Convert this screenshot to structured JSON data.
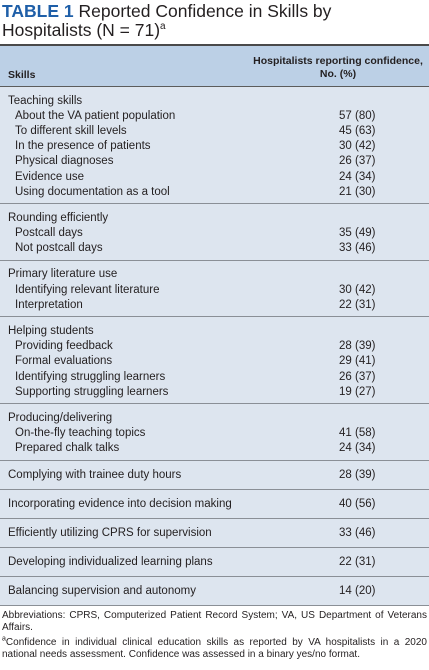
{
  "title": {
    "label": "TABLE 1",
    "text": "Reported Confidence in Skills by Hospitalists (N = 71)",
    "note_mark": "a"
  },
  "header": {
    "skills": "Skills",
    "confidence": "Hospitalists reporting confidence, No. (%)"
  },
  "groups": [
    {
      "title": "Teaching skills",
      "items": [
        {
          "label": "About the VA patient population",
          "value": "57 (80)"
        },
        {
          "label": "To different skill levels",
          "value": "45 (63)"
        },
        {
          "label": "In the presence of patients",
          "value": "30 (42)"
        },
        {
          "label": "Physical diagnoses",
          "value": "26 (37)"
        },
        {
          "label": "Evidence use",
          "value": "24 (34)"
        },
        {
          "label": "Using documentation as a tool",
          "value": "21 (30)"
        }
      ]
    },
    {
      "title": "Rounding efficiently",
      "items": [
        {
          "label": "Postcall days",
          "value": "35 (49)"
        },
        {
          "label": "Not postcall days",
          "value": "33 (46)"
        }
      ]
    },
    {
      "title": "Primary literature use",
      "items": [
        {
          "label": "Identifying relevant literature",
          "value": "30 (42)"
        },
        {
          "label": "Interpretation",
          "value": "22 (31)"
        }
      ]
    },
    {
      "title": "Helping students",
      "items": [
        {
          "label": "Providing feedback",
          "value": "28 (39)"
        },
        {
          "label": "Formal evaluations",
          "value": "29 (41)"
        },
        {
          "label": "Identifying struggling learners",
          "value": "26 (37)"
        },
        {
          "label": "Supporting struggling learners",
          "value": "19 (27)"
        }
      ]
    },
    {
      "title": "Producing/delivering",
      "items": [
        {
          "label": "On-the-fly teaching topics",
          "value": "41 (58)"
        },
        {
          "label": "Prepared chalk talks",
          "value": "24 (34)"
        }
      ]
    }
  ],
  "single_rows": [
    {
      "label": "Complying with trainee duty hours",
      "value": "28 (39)"
    },
    {
      "label": "Incorporating evidence into decision making",
      "value": "40 (56)"
    },
    {
      "label": "Efficiently utilizing CPRS for supervision",
      "value": "33 (46)"
    },
    {
      "label": "Developing individualized learning plans",
      "value": "22 (31)"
    },
    {
      "label": "Balancing supervision and autonomy",
      "value": "14 (20)"
    }
  ],
  "footnotes": {
    "abbreviations": "Abbreviations: CPRS, Computerized Patient Record System; VA, US Department of Veterans Affairs.",
    "note_mark": "a",
    "note": "Confidence in individual clinical education skills as reported by VA hospitalists in a 2020 national needs assessment. Confidence was assessed in a binary yes/no format."
  }
}
